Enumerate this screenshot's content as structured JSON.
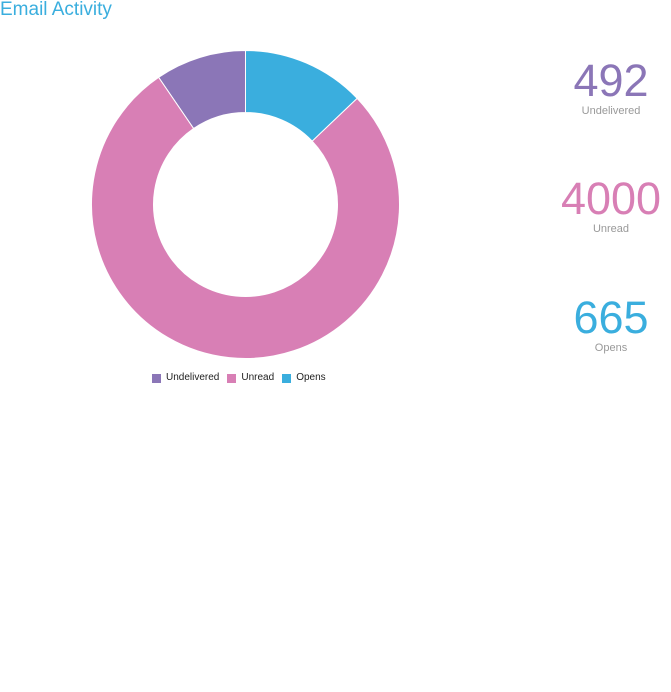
{
  "panel": {
    "title": "Email Activity"
  },
  "colors": {
    "title": "#3aaede",
    "label": "#999999",
    "legend_text": "#222222"
  },
  "chart_data": {
    "type": "pie",
    "donut": true,
    "categories": [
      "Undelivered",
      "Unread",
      "Opens"
    ],
    "values": [
      492,
      4000,
      665
    ],
    "colors": [
      "#8b76b7",
      "#d87fb5",
      "#3aaede"
    ],
    "legend": {
      "position": "bottom",
      "items": [
        "Undelivered",
        "Unread",
        "Opens"
      ]
    }
  },
  "stats": [
    {
      "value": "492",
      "label": "Undelivered",
      "color": "#8b76b7"
    },
    {
      "value": "4000",
      "label": "Unread",
      "color": "#d87fb5"
    },
    {
      "value": "665",
      "label": "Opens",
      "color": "#3aaede"
    }
  ]
}
